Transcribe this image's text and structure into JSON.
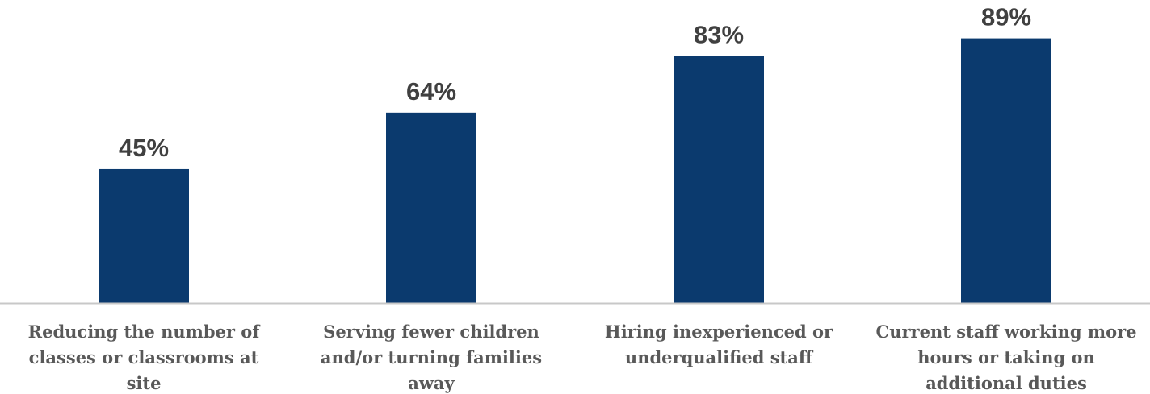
{
  "chart_data": {
    "type": "bar",
    "categories": [
      [
        "Reducing the number of",
        "classes or classrooms at",
        "site"
      ],
      [
        "Serving fewer children",
        "and/or turning families",
        "away"
      ],
      [
        "Hiring inexperienced or",
        "underqualified staff"
      ],
      [
        "Current staff working more",
        "hours or taking on",
        "additional duties"
      ]
    ],
    "values": [
      45,
      64,
      83,
      89
    ],
    "value_labels": [
      "45%",
      "64%",
      "83%",
      "89%"
    ],
    "ylim": [
      0,
      100
    ],
    "grid": false,
    "legend": "none"
  },
  "colors": {
    "bar": "#0b3a6e",
    "axis": "#c8c8c8",
    "value_text": "#404040",
    "category_text": "#595959"
  }
}
